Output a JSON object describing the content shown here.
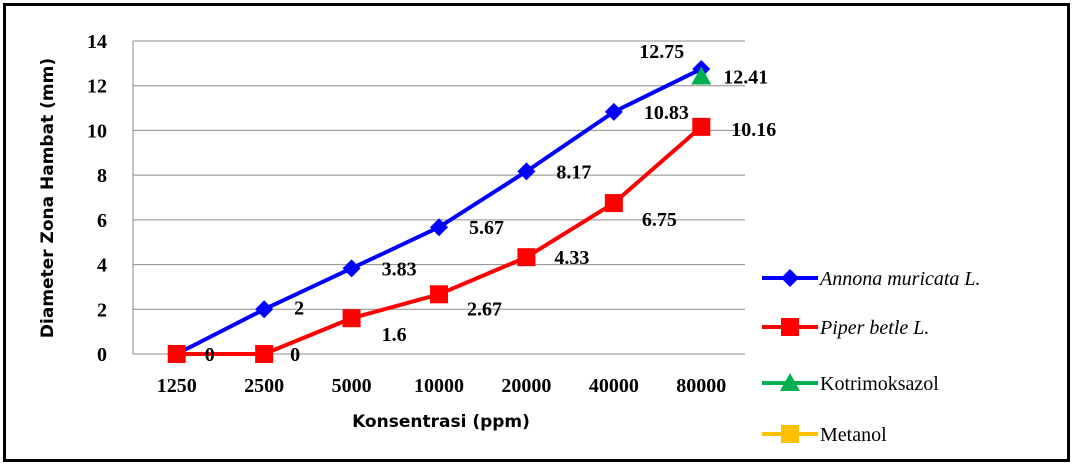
{
  "chart_data": {
    "type": "line",
    "title": "",
    "xlabel": "Konsentrasi (ppm)",
    "ylabel": "Diameter Zona Hambat (mm)",
    "categories": [
      "1250",
      "2500",
      "5000",
      "10000",
      "20000",
      "40000",
      "80000"
    ],
    "ylim": [
      0,
      14
    ],
    "yticks": [
      "0",
      "2",
      "4",
      "6",
      "8",
      "10",
      "12",
      "14"
    ],
    "grid": true,
    "legend_position": "right",
    "series": [
      {
        "name": "Annona muricata L.",
        "italic": true,
        "color": "#0000ff",
        "marker": "diamond",
        "values": [
          0,
          2,
          3.83,
          5.67,
          8.17,
          10.83,
          12.75
        ],
        "labels": [
          "",
          "2",
          "3.83",
          "5.67",
          "8.17",
          "10.83",
          "12.75"
        ]
      },
      {
        "name": "Piper betle L.",
        "italic": true,
        "color": "#ff0000",
        "marker": "square",
        "values": [
          0,
          0,
          1.6,
          2.67,
          4.33,
          6.75,
          10.16
        ],
        "labels": [
          "0",
          "0",
          "1.6",
          "2.67",
          "4.33",
          "6.75",
          "10.16"
        ]
      },
      {
        "name": "Kotrimoksazol",
        "italic": false,
        "color": "#00b050",
        "marker": "triangle",
        "values": [
          null,
          null,
          null,
          null,
          null,
          null,
          12.41
        ],
        "labels": [
          "",
          "",
          "",
          "",
          "",
          "",
          "12.41"
        ]
      },
      {
        "name": "Metanol",
        "italic": false,
        "color": "#ffc000",
        "marker": "square",
        "values": [
          null,
          null,
          null,
          null,
          null,
          null,
          null
        ],
        "labels": [
          "",
          "",
          "",
          "",
          "",
          "",
          ""
        ]
      }
    ]
  }
}
